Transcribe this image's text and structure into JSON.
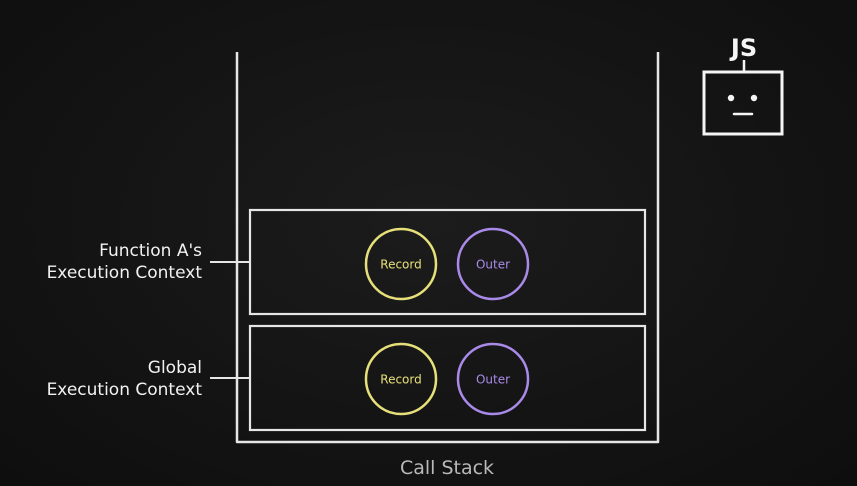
{
  "stack_label": "Call Stack",
  "contexts": [
    {
      "line1": "Function A's",
      "line2": "Execution Context",
      "record_label": "Record",
      "outer_label": "Outer"
    },
    {
      "line1": "Global",
      "line2": "Execution Context",
      "record_label": "Record",
      "outer_label": "Outer"
    }
  ],
  "js_badge": {
    "label": "JS"
  },
  "colors": {
    "record": "#e6e07a",
    "outer": "#a98ae8",
    "line": "#e8e8e8"
  }
}
